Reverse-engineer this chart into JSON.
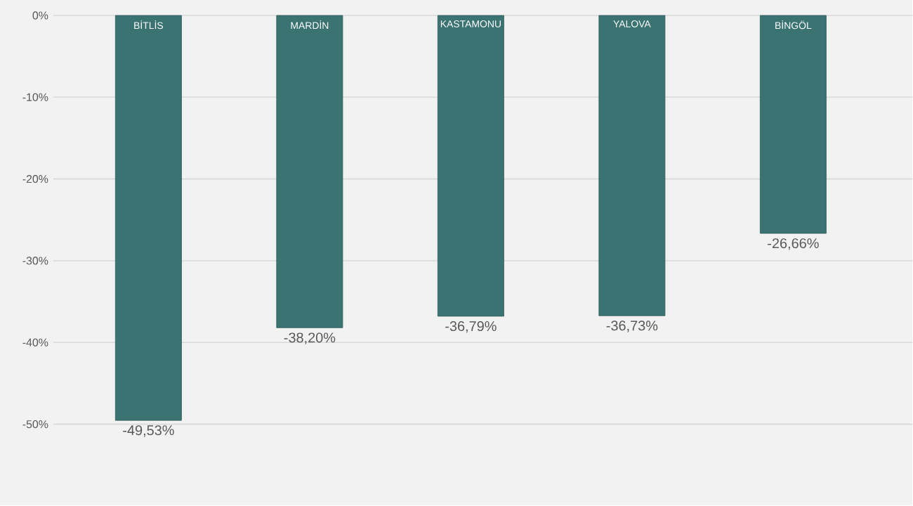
{
  "chart_data": {
    "type": "bar",
    "categories": [
      "BİTLİS",
      "MARDİN",
      "KASTAMONU",
      "YALOVA",
      "BİNGÖL"
    ],
    "values": [
      -49.53,
      -38.2,
      -36.79,
      -36.73,
      -26.66
    ],
    "value_labels": [
      "-49,53%",
      "-38,20%",
      "-36,79%",
      "-36,73%",
      "-26,66%"
    ],
    "color": "#3a7371",
    "ylim": [
      -50,
      0
    ],
    "yticks": [
      {
        "value": 0,
        "label": "0%"
      },
      {
        "value": -10,
        "label": "-10%"
      },
      {
        "value": -20,
        "label": "-20%"
      },
      {
        "value": -30,
        "label": "-30%"
      },
      {
        "value": -40,
        "label": "-40%"
      },
      {
        "value": -50,
        "label": "-50%"
      }
    ],
    "grid": "y"
  }
}
